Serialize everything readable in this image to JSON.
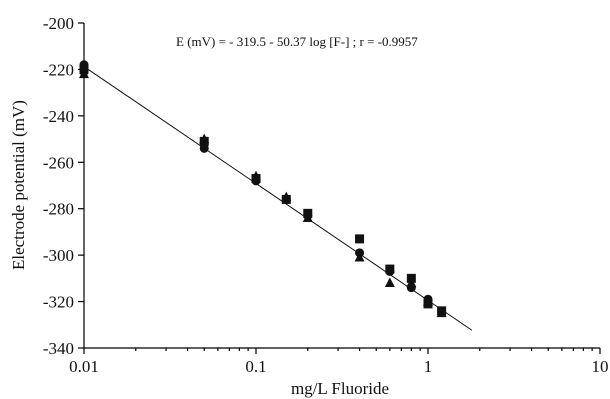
{
  "chart_data": {
    "type": "scatter",
    "title": "",
    "xlabel": "mg/L Fluoride",
    "ylabel": "Electrode potential (mV)",
    "xscale": "log",
    "xlim": [
      0.01,
      10
    ],
    "ylim": [
      -340,
      -200
    ],
    "xticks": [
      "0.01",
      "0.1",
      "1",
      "10"
    ],
    "yticks": [
      "-200",
      "-220",
      "-240",
      "-260",
      "-280",
      "-300",
      "-320",
      "-340"
    ],
    "annotation": "E (mV) = - 319.5 - 50.37 log [F-] ; r = -0.9957",
    "grid": false,
    "legend": "none",
    "fit_line": {
      "intercept": -319.5,
      "slope": -50.37,
      "x_range": [
        0.01,
        1.8
      ]
    },
    "series": [
      {
        "marker": "circle",
        "points": [
          [
            0.01,
            -218
          ],
          [
            0.01,
            -221
          ],
          [
            0.05,
            -252
          ],
          [
            0.05,
            -254
          ],
          [
            0.1,
            -268
          ],
          [
            0.15,
            -276
          ],
          [
            0.2,
            -283
          ],
          [
            0.4,
            -299
          ],
          [
            0.6,
            -307
          ],
          [
            0.8,
            -314
          ],
          [
            1.0,
            -319
          ],
          [
            1.2,
            -324
          ]
        ]
      },
      {
        "marker": "square",
        "points": [
          [
            0.01,
            -220
          ],
          [
            0.05,
            -251
          ],
          [
            0.1,
            -267
          ],
          [
            0.15,
            -276
          ],
          [
            0.2,
            -282
          ],
          [
            0.4,
            -293
          ],
          [
            0.6,
            -306
          ],
          [
            0.8,
            -310
          ],
          [
            1.0,
            -321
          ],
          [
            1.2,
            -324
          ]
        ]
      },
      {
        "marker": "triangle",
        "points": [
          [
            0.01,
            -222
          ],
          [
            0.05,
            -250
          ],
          [
            0.1,
            -266
          ],
          [
            0.15,
            -275
          ],
          [
            0.2,
            -284
          ],
          [
            0.4,
            -301
          ],
          [
            0.6,
            -312
          ],
          [
            0.8,
            -312
          ],
          [
            1.0,
            -320
          ],
          [
            1.2,
            -325
          ]
        ]
      }
    ]
  }
}
